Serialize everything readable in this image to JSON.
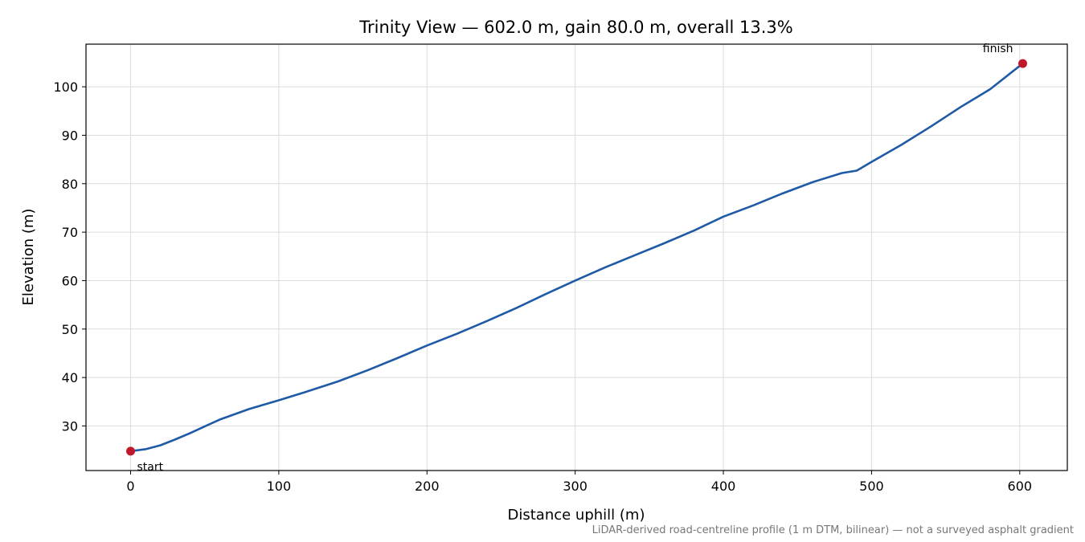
{
  "chart_data": {
    "type": "line",
    "title": "Trinity View — 602.0 m, gain 80.0 m, overall 13.3%",
    "x_label": "Distance uphill (m)",
    "y_label": "Elevation (m)",
    "footnote": "LiDAR-derived road-centreline profile (1 m DTM, bilinear) — not a surveyed asphalt gradient",
    "x": [
      0,
      10,
      20,
      30,
      40,
      50,
      60,
      80,
      100,
      120,
      140,
      160,
      180,
      200,
      220,
      240,
      260,
      280,
      300,
      320,
      340,
      360,
      380,
      400,
      420,
      440,
      460,
      480,
      490,
      500,
      520,
      540,
      560,
      580,
      602
    ],
    "series": [
      {
        "name": "Elevation",
        "color": "#1f5aa6",
        "values": [
          24.8,
          25.2,
          26.0,
          27.2,
          28.5,
          29.9,
          31.3,
          33.5,
          35.3,
          37.2,
          39.2,
          41.5,
          44.0,
          46.6,
          49.0,
          51.6,
          54.3,
          57.2,
          60.0,
          62.7,
          65.2,
          67.7,
          70.3,
          73.2,
          75.5,
          78.0,
          80.3,
          82.2,
          82.7,
          84.5,
          88.0,
          91.8,
          95.8,
          99.5,
          104.8
        ]
      }
    ],
    "annotations": [
      {
        "text": "start",
        "x": 0,
        "y": 24.8
      },
      {
        "text": "finish",
        "x": 602,
        "y": 104.8
      }
    ],
    "marker_color": "#c0182a",
    "xlim": [
      -30.1,
      632.1
    ],
    "ylim": [
      20.8,
      108.8
    ],
    "xticks": [
      0,
      100,
      200,
      300,
      400,
      500,
      600
    ],
    "yticks": [
      30,
      40,
      50,
      60,
      70,
      80,
      90,
      100
    ],
    "grid": true
  }
}
